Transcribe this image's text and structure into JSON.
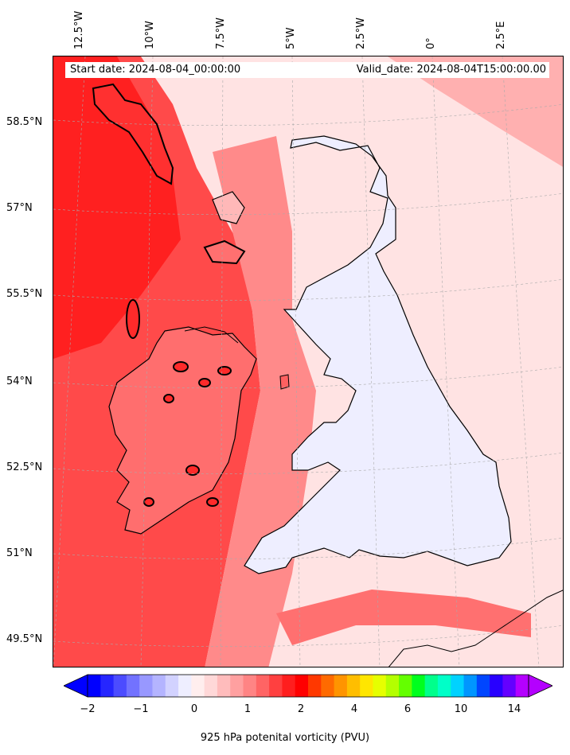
{
  "header": {
    "start_date": "Start date: 2024-08-04_00:00:00",
    "valid_date": "Valid_date: 2024-08-04T15:00:00.00"
  },
  "axes": {
    "longitude_ticks": [
      "12.5°W",
      "10°W",
      "7.5°W",
      "5°W",
      "2.5°W",
      "0°",
      "2.5°E"
    ],
    "latitude_ticks": [
      "58.5°N",
      "57°N",
      "55.5°N",
      "54°N",
      "52.5°N",
      "51°N",
      "49.5°N"
    ]
  },
  "colorbar": {
    "title": "925 hPa potenital vorticity (PVU)",
    "tick_labels": [
      "−2",
      "−1",
      "0",
      "1",
      "2",
      "4",
      "6",
      "10",
      "14"
    ],
    "colors": [
      "#0000ff",
      "#2626ff",
      "#4c4cff",
      "#7272ff",
      "#9898ff",
      "#b4b4ff",
      "#d2d2ff",
      "#eeeeff",
      "#ffeeee",
      "#ffd8d8",
      "#ffbcbc",
      "#ffa0a0",
      "#ff8484",
      "#ff6464",
      "#ff4040",
      "#ff1e1e",
      "#ff0000",
      "#ff3800",
      "#ff6a00",
      "#ff9400",
      "#ffbe00",
      "#ffe600",
      "#e6ff00",
      "#b4ff00",
      "#64ff00",
      "#00ff1e",
      "#00ff8c",
      "#00ffc8",
      "#00d2ff",
      "#0096ff",
      "#0046ff",
      "#2800ff",
      "#6400ff",
      "#b400ff"
    ],
    "extend": "both"
  },
  "colors": {
    "background_pv": "#ffe3e3",
    "land_low_pv": "#eeeeff",
    "high_pv": "#ff2a2a",
    "coastline": "#000000"
  }
}
